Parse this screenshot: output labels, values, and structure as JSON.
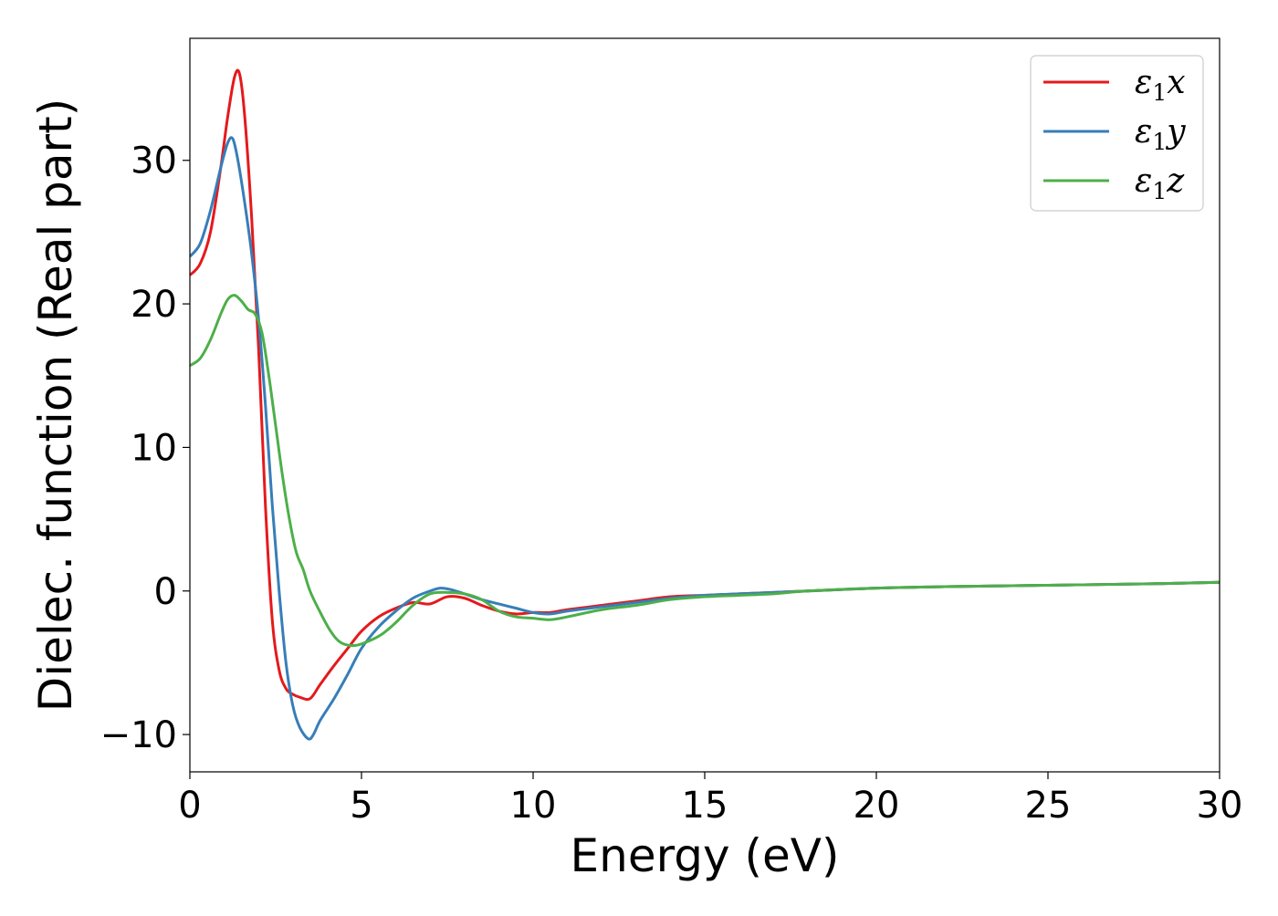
{
  "chart_data": {
    "type": "line",
    "title": "",
    "xlabel": "Energy (eV)",
    "ylabel": "Dielec. function (Real part)",
    "xlim": [
      0,
      30
    ],
    "ylim": [
      -12.6,
      38.5
    ],
    "xticks": [
      0,
      5,
      10,
      15,
      20,
      25,
      30
    ],
    "yticks": [
      -10,
      0,
      10,
      20,
      30
    ],
    "xtick_labels": [
      "0",
      "5",
      "10",
      "15",
      "20",
      "25",
      "30"
    ],
    "ytick_labels": [
      "−10",
      "0",
      "10",
      "20",
      "30"
    ],
    "grid": false,
    "legend_position": "top-right",
    "series": [
      {
        "name": "ε₁x",
        "legend_label": {
          "main": "ε",
          "sub": "1",
          "suffix": "x"
        },
        "color": "#e41a1c",
        "x": [
          0,
          0.3,
          0.6,
          0.9,
          1.1,
          1.3,
          1.45,
          1.6,
          1.8,
          2.0,
          2.2,
          2.4,
          2.6,
          2.8,
          3.0,
          3.2,
          3.5,
          3.8,
          4.2,
          4.6,
          5.0,
          5.5,
          6.0,
          6.5,
          7.0,
          7.5,
          8.0,
          8.5,
          9.0,
          9.5,
          10.0,
          10.5,
          11.0,
          12.0,
          13.0,
          14.0,
          15.0,
          16.0,
          17.0,
          18.0,
          20.0,
          22.0,
          25.0,
          28.0,
          30.0
        ],
        "values": [
          22.0,
          22.8,
          25.0,
          29.5,
          33.0,
          35.8,
          36.0,
          33.0,
          26.0,
          17.0,
          6.0,
          -2.0,
          -5.5,
          -6.8,
          -7.2,
          -7.4,
          -7.5,
          -6.5,
          -5.2,
          -4.0,
          -2.8,
          -1.8,
          -1.2,
          -0.8,
          -0.9,
          -0.4,
          -0.5,
          -1.0,
          -1.4,
          -1.6,
          -1.5,
          -1.5,
          -1.3,
          -1.0,
          -0.7,
          -0.4,
          -0.3,
          -0.2,
          -0.1,
          0.0,
          0.2,
          0.3,
          0.4,
          0.5,
          0.6
        ]
      },
      {
        "name": "ε₁y",
        "legend_label": {
          "main": "ε",
          "sub": "1",
          "suffix": "y"
        },
        "color": "#377eb8",
        "x": [
          0,
          0.3,
          0.6,
          0.9,
          1.1,
          1.25,
          1.4,
          1.6,
          1.8,
          2.0,
          2.2,
          2.4,
          2.6,
          2.8,
          3.0,
          3.2,
          3.45,
          3.6,
          3.8,
          4.2,
          4.6,
          5.0,
          5.5,
          6.0,
          6.5,
          7.0,
          7.3,
          7.6,
          8.0,
          8.5,
          9.0,
          9.5,
          10.0,
          10.5,
          11.0,
          12.0,
          13.0,
          14.0,
          15.0,
          16.0,
          17.0,
          18.0,
          20.0,
          22.0,
          25.0,
          28.0,
          30.0
        ],
        "values": [
          23.3,
          24.2,
          26.5,
          29.5,
          31.2,
          31.5,
          30.0,
          27.0,
          23.5,
          19.0,
          13.0,
          6.0,
          0.0,
          -5.0,
          -8.0,
          -9.5,
          -10.3,
          -10.0,
          -9.0,
          -7.5,
          -5.8,
          -4.0,
          -2.5,
          -1.4,
          -0.5,
          0.0,
          0.2,
          0.1,
          -0.2,
          -0.6,
          -0.9,
          -1.2,
          -1.5,
          -1.6,
          -1.4,
          -1.1,
          -0.8,
          -0.5,
          -0.3,
          -0.2,
          -0.1,
          0.0,
          0.2,
          0.3,
          0.4,
          0.5,
          0.6
        ]
      },
      {
        "name": "ε₁z",
        "legend_label": {
          "main": "ε",
          "sub": "1",
          "suffix": "z"
        },
        "color": "#4daf4a",
        "x": [
          0,
          0.3,
          0.6,
          0.9,
          1.1,
          1.3,
          1.5,
          1.7,
          1.9,
          2.1,
          2.3,
          2.5,
          2.7,
          2.9,
          3.1,
          3.3,
          3.5,
          3.8,
          4.1,
          4.4,
          4.8,
          5.2,
          5.6,
          6.0,
          6.5,
          7.0,
          7.5,
          8.0,
          8.5,
          9.0,
          9.5,
          10.0,
          10.5,
          11.0,
          12.0,
          13.0,
          14.0,
          15.0,
          16.0,
          17.0,
          18.0,
          20.0,
          22.0,
          25.0,
          28.0,
          30.0
        ],
        "values": [
          15.7,
          16.2,
          17.5,
          19.3,
          20.3,
          20.6,
          20.2,
          19.6,
          19.3,
          18.0,
          15.0,
          11.5,
          8.0,
          5.0,
          2.7,
          1.5,
          0.0,
          -1.5,
          -2.8,
          -3.6,
          -3.8,
          -3.5,
          -3.0,
          -2.2,
          -1.0,
          -0.2,
          -0.1,
          -0.2,
          -0.6,
          -1.4,
          -1.8,
          -1.9,
          -2.0,
          -1.8,
          -1.3,
          -1.0,
          -0.6,
          -0.4,
          -0.3,
          -0.2,
          0.0,
          0.2,
          0.3,
          0.4,
          0.5,
          0.6
        ]
      }
    ]
  }
}
